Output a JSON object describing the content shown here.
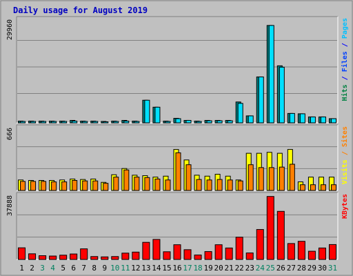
{
  "chart_data": {
    "type": "bar",
    "title": "Daily usage for August 2019",
    "categories": [
      "1",
      "2",
      "3",
      "4",
      "5",
      "6",
      "7",
      "8",
      "9",
      "10",
      "11",
      "12",
      "13",
      "14",
      "15",
      "16",
      "17",
      "18",
      "19",
      "20",
      "21",
      "22",
      "23",
      "24",
      "25",
      "26",
      "27",
      "28",
      "29",
      "30",
      "31"
    ],
    "weekend_days": [
      "3",
      "4",
      "10",
      "11",
      "17",
      "18",
      "24",
      "25",
      "31"
    ],
    "panels": [
      {
        "name": "top",
        "ymax_label": "29960",
        "ylim": [
          0,
          29960
        ],
        "right_label": [
          {
            "text": "Hits",
            "color": "#008040"
          },
          {
            "text": " / ",
            "color": "#0000ff"
          },
          {
            "text": "Files",
            "color": "#0040ff"
          },
          {
            "text": " / ",
            "color": "#0000ff"
          },
          {
            "text": "Pages",
            "color": "#00c0ff"
          }
        ],
        "series": [
          {
            "name": "Hits",
            "color": "#008080",
            "values": [
              500,
              500,
              500,
              500,
              500,
              700,
              500,
              500,
              400,
              500,
              700,
              500,
              6500,
              4500,
              500,
              1300,
              700,
              500,
              700,
              700,
              700,
              6000,
              2000,
              13200,
              28000,
              16400,
              2700,
              2600,
              1700,
              1700,
              1200
            ]
          },
          {
            "name": "Files",
            "color": "#00e0ff",
            "values": [
              400,
              400,
              400,
              400,
              400,
              500,
              400,
              400,
              300,
              400,
              500,
              400,
              6500,
              4500,
              400,
              1200,
              700,
              400,
              600,
              600,
              600,
              5600,
              2000,
              13200,
              28000,
              16000,
              2700,
              2600,
              1700,
              1700,
              1200
            ]
          }
        ]
      },
      {
        "name": "middle",
        "ymax_label": "666",
        "ylim": [
          0,
          666
        ],
        "right_label": [
          {
            "text": "Visits",
            "color": "#ffff00"
          },
          {
            "text": " / ",
            "color": "#ff8000"
          },
          {
            "text": "Sites",
            "color": "#ff8000"
          }
        ],
        "series": [
          {
            "name": "Visits",
            "color": "#ffff00",
            "values": [
              110,
              105,
              105,
              105,
              110,
              120,
              115,
              120,
              85,
              165,
              230,
              160,
              155,
              140,
              150,
              430,
              320,
              160,
              150,
              170,
              150,
              110,
              390,
              390,
              400,
              390,
              430,
              90,
              140,
              140,
              140
            ]
          },
          {
            "name": "Sites",
            "color": "#ff8000",
            "values": [
              95,
              95,
              95,
              90,
              90,
              105,
              100,
              100,
              75,
              140,
              215,
              140,
              135,
              120,
              110,
              395,
              270,
              115,
              110,
              115,
              110,
              100,
              270,
              240,
              240,
              245,
              275,
              60,
              60,
              60,
              60
            ]
          }
        ]
      },
      {
        "name": "bottom",
        "ymax_label": "37888",
        "ylim": [
          0,
          37888
        ],
        "right_label": [
          {
            "text": "KBytes",
            "color": "#ff0000"
          }
        ],
        "series": [
          {
            "name": "KBytes",
            "color": "#ff0000",
            "values": [
              6800,
              3300,
              2200,
              2000,
              2500,
              3200,
              6200,
              1700,
              1500,
              1700,
              3700,
              4300,
              10000,
              11700,
              4500,
              8600,
              5700,
              2600,
              4600,
              8600,
              6700,
              13000,
              3800,
              17500,
              36800,
              28100,
              9300,
              10600,
              4800,
              6700,
              8700
            ]
          }
        ]
      }
    ]
  }
}
